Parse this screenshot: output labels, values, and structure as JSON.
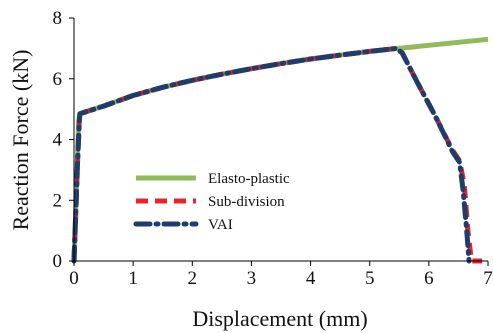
{
  "chart_data": {
    "type": "line",
    "xlabel": "Displacement (mm)",
    "ylabel": "Reaction Force (kN)",
    "xlim": [
      0,
      7
    ],
    "ylim": [
      0,
      8
    ],
    "xticks": [
      "0",
      "1",
      "2",
      "3",
      "4",
      "5",
      "6",
      "7"
    ],
    "yticks": [
      "0",
      "2",
      "4",
      "6",
      "8"
    ],
    "grid": false,
    "legend_position": "lower-left",
    "series": [
      {
        "name": "Elasto-plastic",
        "color": "#92b95a",
        "style": "solid",
        "x": [
          0,
          0.05,
          0.08,
          0.1,
          0.5,
          1,
          1.5,
          2,
          2.5,
          3,
          3.5,
          4,
          4.5,
          5,
          5.5,
          6,
          6.5,
          7
        ],
        "y": [
          0,
          2.9,
          4.6,
          4.85,
          5.1,
          5.45,
          5.72,
          5.95,
          6.15,
          6.33,
          6.5,
          6.65,
          6.78,
          6.9,
          7.0,
          7.1,
          7.2,
          7.3
        ]
      },
      {
        "name": "Sub-division",
        "color": "#e8232a",
        "style": "dashed",
        "x": [
          0,
          0.03,
          0.06,
          0.09,
          0.1,
          0.5,
          1,
          1.5,
          2,
          2.5,
          3,
          3.5,
          4,
          4.5,
          5,
          5.45,
          5.55,
          5.8,
          6.1,
          6.4,
          6.52,
          6.6,
          6.66,
          6.72,
          6.9
        ],
        "y": [
          0,
          1.6,
          3.2,
          4.6,
          4.85,
          5.1,
          5.45,
          5.72,
          5.95,
          6.15,
          6.33,
          6.5,
          6.65,
          6.78,
          6.9,
          7.0,
          6.85,
          5.9,
          4.8,
          3.65,
          3.3,
          2.5,
          1.0,
          0,
          0
        ]
      },
      {
        "name": "VAI",
        "color": "#1f3d6b",
        "style": "dashdot",
        "x": [
          0,
          0.03,
          0.06,
          0.09,
          0.1,
          0.5,
          1,
          1.5,
          2,
          2.5,
          3,
          3.5,
          4,
          4.5,
          5,
          5.45,
          5.55,
          5.8,
          6.1,
          6.4,
          6.52,
          6.58,
          6.64,
          6.68
        ],
        "y": [
          0,
          1.6,
          3.2,
          4.6,
          4.85,
          5.1,
          5.45,
          5.72,
          5.95,
          6.15,
          6.33,
          6.5,
          6.65,
          6.78,
          6.9,
          7.0,
          6.85,
          5.9,
          4.8,
          3.6,
          3.25,
          2.3,
          1.0,
          0
        ]
      }
    ]
  }
}
